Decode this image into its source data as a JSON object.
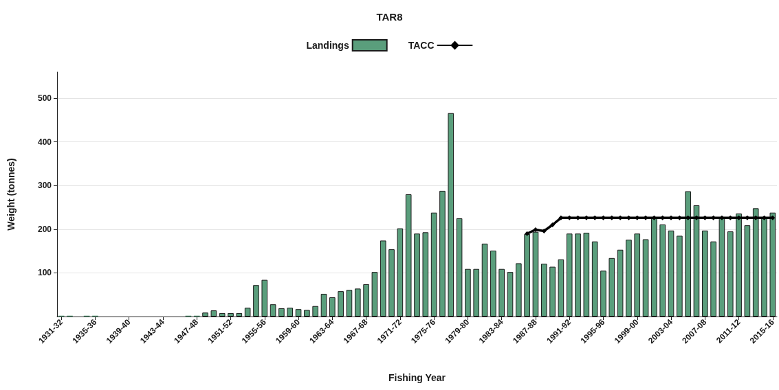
{
  "chart_data": {
    "type": "bar",
    "title": "TAR8",
    "xlabel": "Fishing Year",
    "ylabel": "Weight (tonnes)",
    "categories": [
      "1931-32",
      null,
      null,
      null,
      "1935-36",
      null,
      null,
      null,
      "1939-40",
      null,
      null,
      null,
      "1943-44",
      null,
      null,
      null,
      "1947-48",
      null,
      null,
      null,
      "1951-52",
      null,
      null,
      null,
      "1955-56",
      null,
      null,
      null,
      "1959-60",
      null,
      null,
      null,
      "1963-64",
      null,
      null,
      null,
      "1967-68",
      null,
      null,
      null,
      "1971-72",
      null,
      null,
      null,
      "1975-76",
      null,
      null,
      null,
      "1979-80",
      null,
      null,
      null,
      "1983-84",
      null,
      null,
      null,
      "1987-88",
      null,
      null,
      null,
      "1991-92",
      null,
      null,
      null,
      "1995-96",
      null,
      null,
      null,
      "1999-00",
      null,
      null,
      null,
      "2003-04",
      null,
      null,
      null,
      "2007-08",
      null,
      null,
      null,
      "2011-12",
      null,
      null,
      null,
      "2015-16"
    ],
    "series": [
      {
        "name": "Landings",
        "color": "#5a9e7c",
        "values": [
          2,
          2,
          null,
          2,
          2,
          null,
          null,
          null,
          null,
          null,
          null,
          null,
          null,
          null,
          null,
          2,
          2,
          9,
          14,
          8,
          8,
          8,
          20,
          72,
          84,
          28,
          19,
          20,
          17,
          15,
          24,
          52,
          44,
          58,
          61,
          64,
          74,
          102,
          174,
          154,
          202,
          280,
          190,
          193,
          238,
          288,
          466,
          225,
          109,
          109,
          167,
          151,
          109,
          102,
          122,
          189,
          194,
          121,
          114,
          131,
          190,
          190,
          192,
          172,
          105,
          134,
          153,
          176,
          190,
          177,
          226,
          211,
          197,
          185,
          287,
          255,
          197,
          172,
          226,
          195,
          236,
          209,
          248,
          226,
          238
        ]
      },
      {
        "name": "TACC",
        "type": "line",
        "color": "#000000",
        "marker": "diamond",
        "line_style": "solid",
        "values": [
          null,
          null,
          null,
          null,
          null,
          null,
          null,
          null,
          null,
          null,
          null,
          null,
          null,
          null,
          null,
          null,
          null,
          null,
          null,
          null,
          null,
          null,
          null,
          null,
          null,
          null,
          null,
          null,
          null,
          null,
          null,
          null,
          null,
          null,
          null,
          null,
          null,
          null,
          null,
          null,
          null,
          null,
          null,
          null,
          null,
          null,
          null,
          null,
          null,
          null,
          null,
          null,
          null,
          null,
          null,
          190,
          199,
          196,
          210,
          226,
          226,
          226,
          226,
          226,
          226,
          226,
          226,
          226,
          226,
          226,
          226,
          226,
          226,
          226,
          226,
          226,
          226,
          226,
          226,
          226,
          226,
          226,
          226,
          226,
          226
        ]
      }
    ],
    "ylim": [
      0,
      560
    ],
    "yticks": [
      100,
      200,
      300,
      400,
      500
    ],
    "grid": "y",
    "legend": "top"
  }
}
